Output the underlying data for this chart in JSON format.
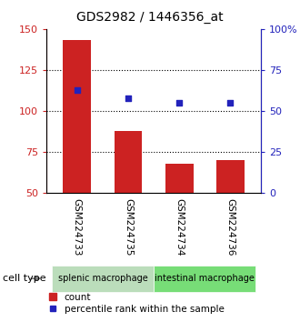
{
  "title": "GDS2982 / 1446356_at",
  "samples": [
    "GSM224733",
    "GSM224735",
    "GSM224734",
    "GSM224736"
  ],
  "counts": [
    143,
    88,
    68,
    70
  ],
  "percentile_values": [
    113,
    108,
    105,
    105
  ],
  "ylim_left": [
    50,
    150
  ],
  "ylim_right": [
    0,
    100
  ],
  "yticks_left": [
    50,
    75,
    100,
    125,
    150
  ],
  "yticks_right": [
    0,
    25,
    50,
    75,
    100
  ],
  "ytick_right_labels": [
    "0",
    "25",
    "50",
    "75",
    "100%"
  ],
  "bar_color": "#cc2222",
  "dot_color": "#2222bb",
  "bar_width": 0.55,
  "group_box_color_splenic": "#bbddbb",
  "group_box_color_intestinal": "#77dd77",
  "sample_box_color": "#cccccc",
  "legend_count_label": "count",
  "legend_pct_label": "percentile rank within the sample",
  "cell_type_label": "cell type",
  "dotted_yticks": [
    75,
    100,
    125
  ],
  "background_color": "#ffffff"
}
